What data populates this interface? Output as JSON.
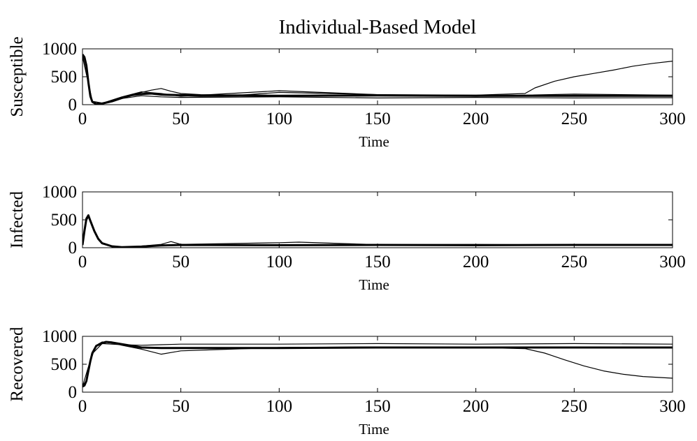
{
  "title": "Individual-Based Model",
  "chart_data": [
    {
      "type": "line",
      "ylabel": "Susceptible",
      "xlabel": "Time",
      "xlim": [
        0,
        300
      ],
      "ylim": [
        0,
        1000
      ],
      "xticks": [
        "0",
        "50",
        "100",
        "150",
        "200",
        "250",
        "300"
      ],
      "yticks": [
        "0",
        "500",
        "1000"
      ],
      "series": [
        {
          "x": [
            0,
            1,
            2,
            3,
            4,
            5,
            7,
            10,
            15,
            20,
            25,
            30,
            35,
            40,
            50,
            60,
            80,
            100,
            150,
            200,
            220,
            300
          ],
          "y": [
            900,
            850,
            700,
            400,
            150,
            50,
            10,
            20,
            60,
            120,
            170,
            190,
            200,
            180,
            170,
            160,
            165,
            160,
            165,
            160,
            160,
            160
          ]
        },
        {
          "x": [
            0,
            1,
            2,
            3,
            4,
            5,
            7,
            10,
            15,
            20,
            25,
            30,
            35,
            40,
            45,
            50,
            60,
            80,
            100,
            150,
            200,
            225,
            230,
            240,
            250,
            260,
            270,
            280,
            290,
            300
          ],
          "y": [
            880,
            820,
            650,
            350,
            120,
            40,
            15,
            25,
            70,
            130,
            180,
            220,
            260,
            290,
            240,
            200,
            180,
            170,
            220,
            180,
            170,
            200,
            300,
            420,
            500,
            560,
            620,
            690,
            740,
            780
          ]
        },
        {
          "x": [
            0,
            5,
            10,
            20,
            30,
            40,
            50,
            100,
            150,
            200,
            250,
            300
          ],
          "y": [
            860,
            60,
            30,
            110,
            160,
            140,
            130,
            140,
            120,
            130,
            120,
            125
          ]
        },
        {
          "x": [
            0,
            5,
            10,
            20,
            30,
            40,
            50,
            100,
            150,
            200,
            250,
            300
          ],
          "y": [
            890,
            55,
            25,
            140,
            230,
            200,
            150,
            250,
            180,
            150,
            190,
            170
          ]
        }
      ]
    },
    {
      "type": "line",
      "ylabel": "Infected",
      "xlabel": "Time",
      "xlim": [
        0,
        300
      ],
      "ylim": [
        0,
        1000
      ],
      "xticks": [
        "0",
        "50",
        "100",
        "150",
        "200",
        "250",
        "300"
      ],
      "yticks": [
        "0",
        "500",
        "1000"
      ],
      "series": [
        {
          "x": [
            0,
            1,
            2,
            3,
            4,
            6,
            8,
            10,
            15,
            20,
            30,
            40,
            50,
            100,
            150,
            200,
            250,
            300
          ],
          "y": [
            50,
            300,
            520,
            580,
            480,
            300,
            160,
            80,
            25,
            10,
            20,
            40,
            50,
            45,
            50,
            45,
            50,
            50
          ]
        },
        {
          "x": [
            0,
            1,
            2,
            3,
            4,
            6,
            8,
            10,
            15,
            20,
            30,
            40,
            45,
            50,
            100,
            110,
            150,
            200,
            250,
            300
          ],
          "y": [
            40,
            260,
            480,
            550,
            460,
            280,
            150,
            70,
            20,
            10,
            30,
            60,
            110,
            60,
            90,
            100,
            55,
            60,
            50,
            55
          ]
        }
      ]
    },
    {
      "type": "line",
      "ylabel": "Recovered",
      "xlabel": "Time",
      "xlim": [
        0,
        300
      ],
      "ylim": [
        0,
        1000
      ],
      "xticks": [
        "0",
        "50",
        "100",
        "150",
        "200",
        "250",
        "300"
      ],
      "yticks": [
        "0",
        "500",
        "1000"
      ],
      "series": [
        {
          "x": [
            0,
            1,
            2,
            3,
            4,
            5,
            7,
            10,
            12,
            15,
            20,
            25,
            30,
            40,
            50,
            100,
            150,
            200,
            250,
            300
          ],
          "y": [
            100,
            120,
            200,
            380,
            560,
            700,
            830,
            880,
            900,
            890,
            860,
            830,
            800,
            790,
            790,
            790,
            800,
            800,
            800,
            800
          ]
        },
        {
          "x": [
            0,
            2,
            4,
            6,
            8,
            10,
            15,
            20,
            30,
            40,
            50,
            100,
            150,
            200,
            225,
            235,
            245,
            255,
            265,
            275,
            285,
            300
          ],
          "y": [
            110,
            210,
            550,
            760,
            860,
            900,
            880,
            840,
            770,
            680,
            740,
            800,
            810,
            800,
            780,
            700,
            580,
            470,
            380,
            320,
            280,
            250
          ]
        },
        {
          "x": [
            0,
            5,
            10,
            20,
            30,
            40,
            50,
            100,
            150,
            200,
            250,
            300
          ],
          "y": [
            100,
            690,
            870,
            850,
            840,
            850,
            860,
            860,
            870,
            860,
            870,
            860
          ]
        }
      ]
    }
  ]
}
